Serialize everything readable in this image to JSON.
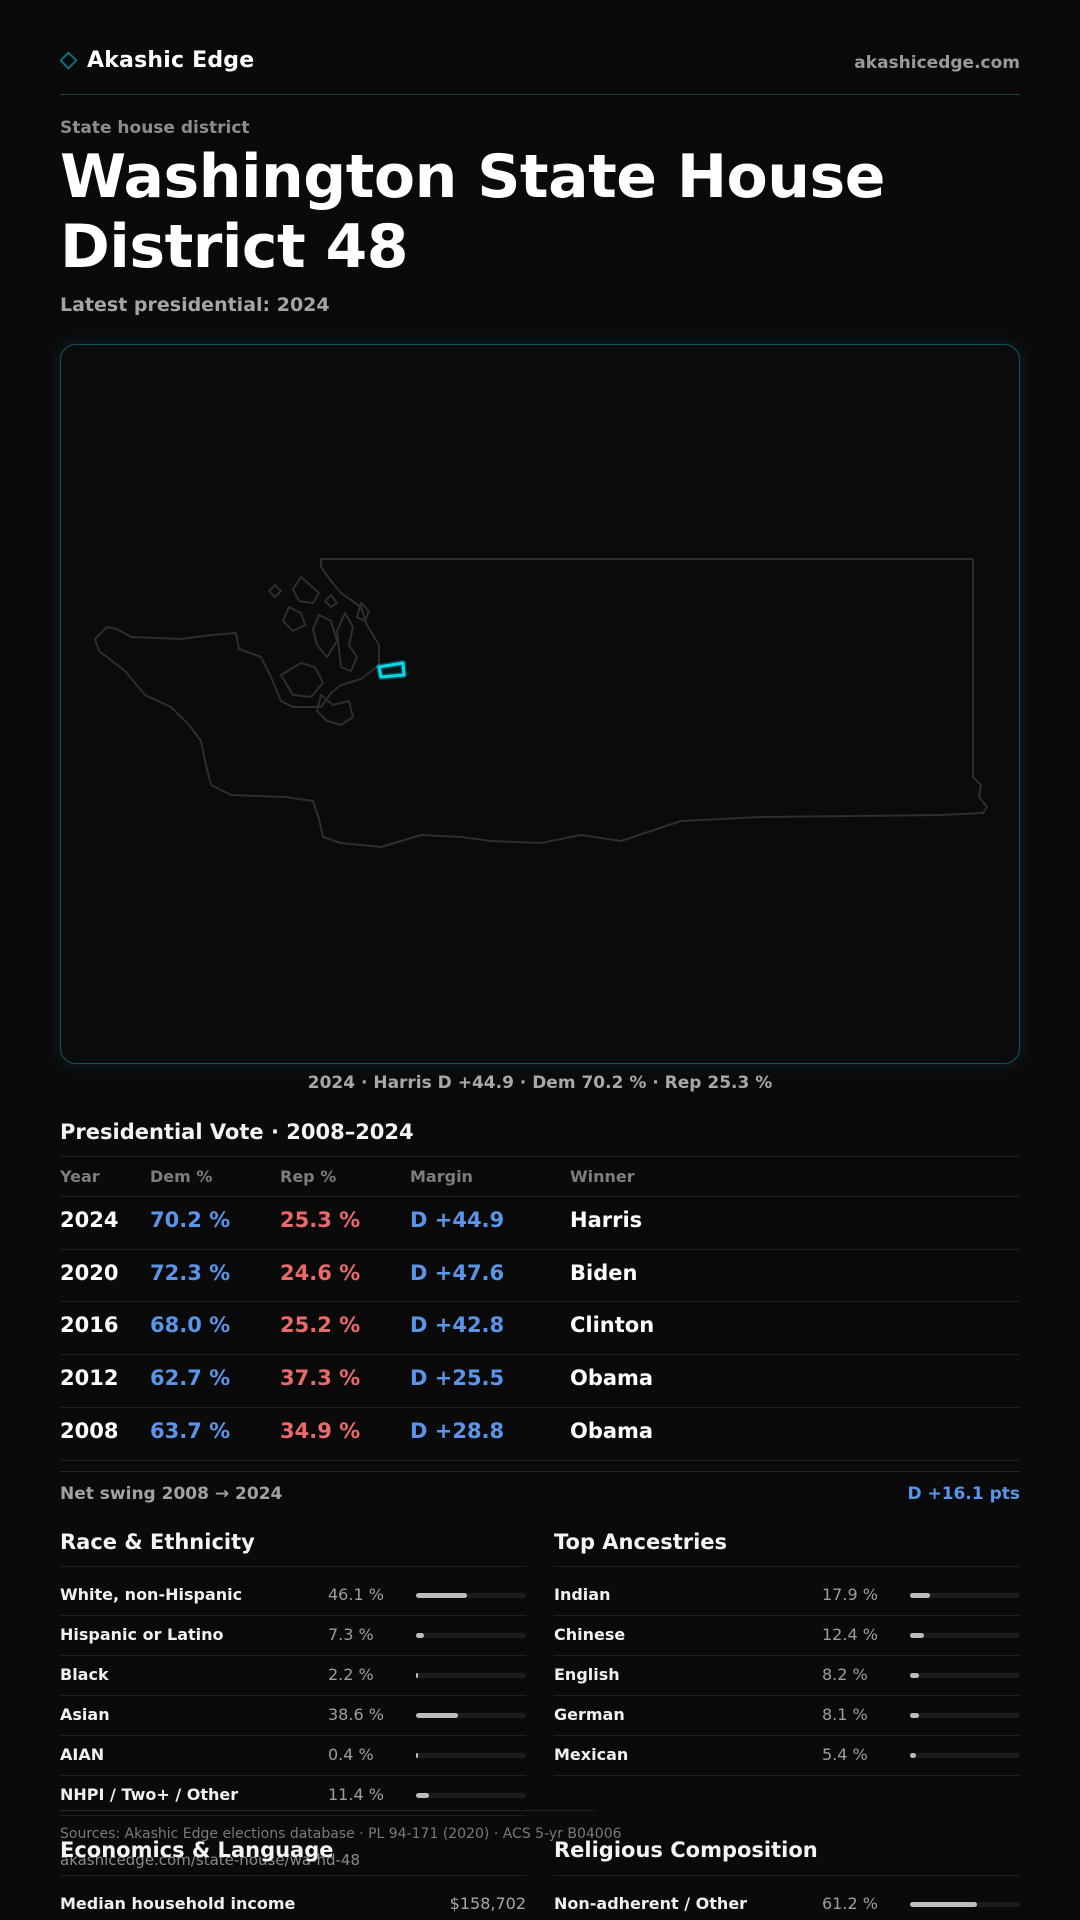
{
  "header": {
    "brand": "Akashic Edge",
    "url": "akashicedge.com",
    "brand_icon": "diamond-outline-icon"
  },
  "page": {
    "eyebrow": "State house district",
    "title": "Washington State House District 48",
    "subtitle": "Latest presidential: 2024"
  },
  "map": {
    "caption": "2024 · Harris D +44.9 · Dem 70.2 % · Rep 25.3 %",
    "highlight_color": "#00c8dc"
  },
  "presidential": {
    "title": "Presidential Vote · 2008–2024",
    "columns": [
      "Year",
      "Dem %",
      "Rep %",
      "Margin",
      "Winner"
    ],
    "rows": [
      {
        "year": "2024",
        "dem": "70.2 %",
        "rep": "25.3 %",
        "margin": "D +44.9",
        "winner": "Harris"
      },
      {
        "year": "2020",
        "dem": "72.3 %",
        "rep": "24.6 %",
        "margin": "D +47.6",
        "winner": "Biden"
      },
      {
        "year": "2016",
        "dem": "68.0 %",
        "rep": "25.2 %",
        "margin": "D +42.8",
        "winner": "Clinton"
      },
      {
        "year": "2012",
        "dem": "62.7 %",
        "rep": "37.3 %",
        "margin": "D +25.5",
        "winner": "Obama"
      },
      {
        "year": "2008",
        "dem": "63.7 %",
        "rep": "34.9 %",
        "margin": "D +28.8",
        "winner": "Obama"
      }
    ],
    "swing_label": "Net swing 2008 → 2024",
    "swing_value": "D +16.1 pts"
  },
  "race": {
    "title": "Race & Ethnicity",
    "items": [
      {
        "label": "White, non-Hispanic",
        "pct": "46.1 %",
        "value": 46.1
      },
      {
        "label": "Hispanic or Latino",
        "pct": "7.3 %",
        "value": 7.3
      },
      {
        "label": "Black",
        "pct": "2.2 %",
        "value": 2.2
      },
      {
        "label": "Asian",
        "pct": "38.6 %",
        "value": 38.6
      },
      {
        "label": "AIAN",
        "pct": "0.4 %",
        "value": 0.4
      },
      {
        "label": "NHPI / Two+ / Other",
        "pct": "11.4 %",
        "value": 11.4
      }
    ]
  },
  "ancestry": {
    "title": "Top Ancestries",
    "items": [
      {
        "label": "Indian",
        "pct": "17.9 %",
        "value": 17.9
      },
      {
        "label": "Chinese",
        "pct": "12.4 %",
        "value": 12.4
      },
      {
        "label": "English",
        "pct": "8.2 %",
        "value": 8.2
      },
      {
        "label": "German",
        "pct": "8.1 %",
        "value": 8.1
      },
      {
        "label": "Mexican",
        "pct": "5.4 %",
        "value": 5.4
      }
    ]
  },
  "economics": {
    "title": "Economics & Language",
    "items": [
      {
        "label": "Median household income",
        "value": "$158,702"
      }
    ]
  },
  "religion": {
    "title": "Religious Composition",
    "items": [
      {
        "label": "Non-adherent / Other",
        "pct": "61.2 %",
        "value": 61.2
      }
    ]
  },
  "footer": {
    "sources": "Sources: Akashic Edge elections database · PL 94-171 (2020) · ACS 5-yr B04006",
    "url": "akashicedge.com/state-house/wa-hd-48"
  }
}
